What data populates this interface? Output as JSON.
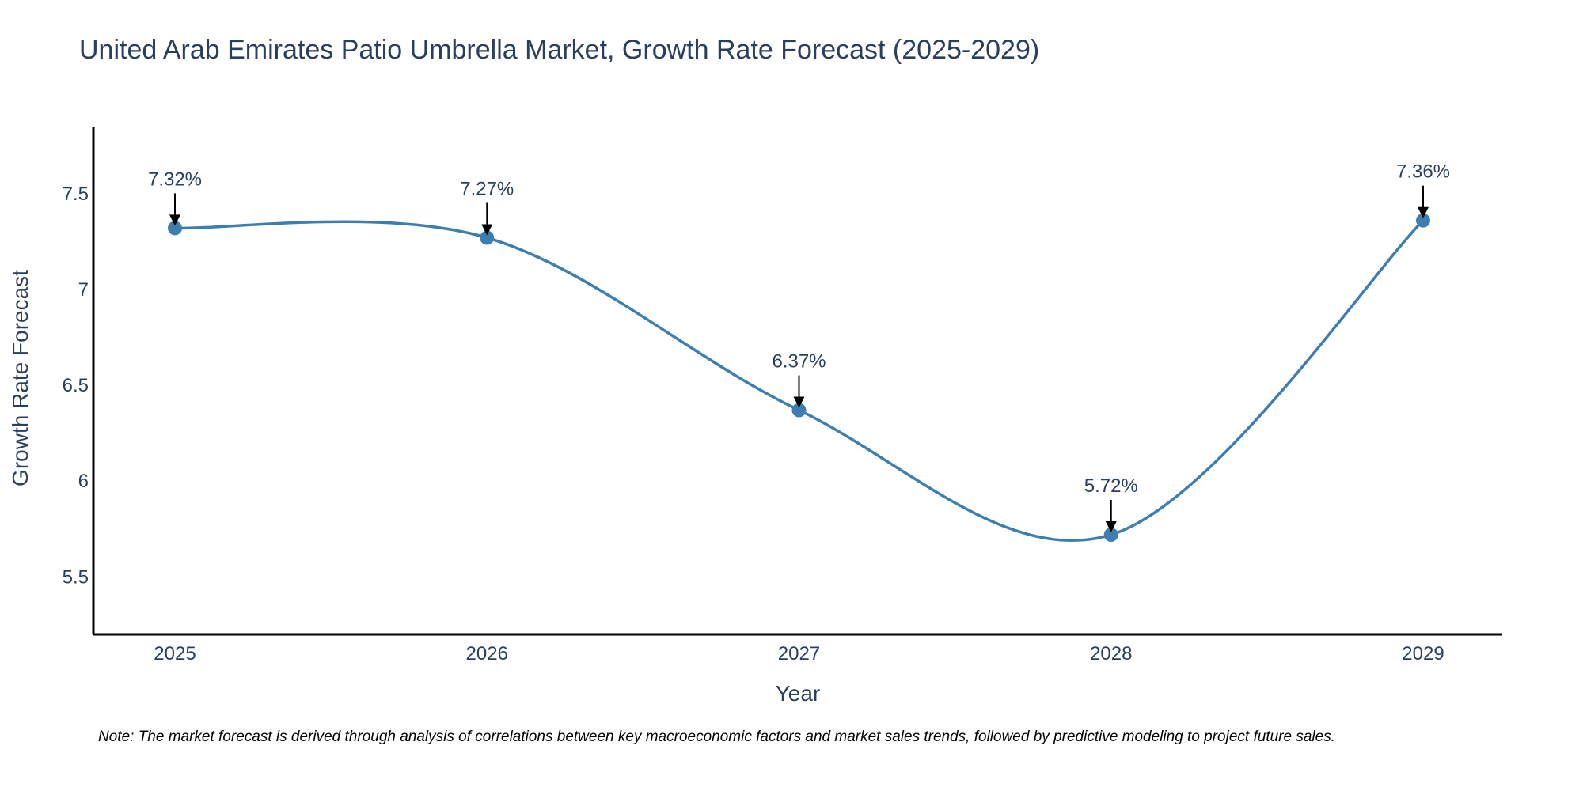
{
  "chart_data": {
    "type": "line",
    "title": "United Arab Emirates Patio Umbrella Market, Growth Rate Forecast (2025-2029)",
    "xlabel": "Year",
    "ylabel": "Growth Rate Forecast",
    "categories": [
      "2025",
      "2026",
      "2027",
      "2028",
      "2029"
    ],
    "series": [
      {
        "name": "Growth Rate Forecast",
        "values": [
          7.32,
          7.27,
          6.37,
          5.72,
          7.36
        ],
        "labels": [
          "7.32%",
          "7.27%",
          "6.37%",
          "5.72%",
          "7.36%"
        ],
        "color": "#3d7eb0"
      }
    ],
    "ylim": [
      5.2,
      7.85
    ],
    "yticks": [
      5.5,
      6,
      6.5,
      7,
      7.5
    ],
    "ytick_labels": [
      "5.5",
      "6",
      "6.5",
      "7",
      "7.5"
    ],
    "grid": false,
    "note": "Note: The market forecast is derived through analysis of correlations between key macroeconomic factors and market sales trends, followed by predictive modeling to project future sales."
  }
}
